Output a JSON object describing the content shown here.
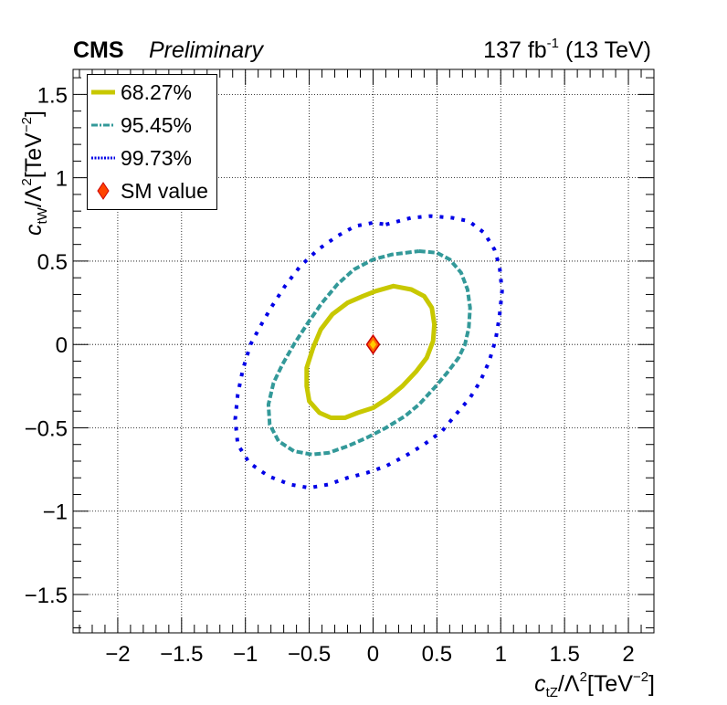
{
  "header": {
    "experiment": "CMS",
    "status": "Preliminary",
    "lumi_value": "137 fb",
    "lumi_exp": "-1",
    "energy": "(13 TeV)"
  },
  "chart_data": {
    "type": "scatter",
    "title": "",
    "xlabel": {
      "var": "c",
      "var_sub": "tZ",
      "mid": "/Λ",
      "mid_sup": "2",
      "unit": "[TeV",
      "unit_sup": "−2",
      "close": "]"
    },
    "ylabel": {
      "var": "c",
      "var_sub": "tW",
      "mid": "/Λ",
      "mid_sup": "2",
      "unit": "[TeV",
      "unit_sup": "−2",
      "close": "]"
    },
    "xlim": [
      -2.35,
      2.2
    ],
    "ylim": [
      -1.73,
      1.65
    ],
    "xticks": [
      -2,
      -1.5,
      -1,
      -0.5,
      0,
      0.5,
      1,
      1.5,
      2
    ],
    "xtick_labels": [
      "−2",
      "−1.5",
      "−1",
      "−0.5",
      "0",
      "0.5",
      "1",
      "1.5",
      "2"
    ],
    "yticks": [
      -1.5,
      -1,
      -0.5,
      0,
      0.5,
      1,
      1.5
    ],
    "ytick_labels": [
      "−1.5",
      "−1",
      "−0.5",
      "0",
      "0.5",
      "1",
      "1.5"
    ],
    "grid": true,
    "legend_position": "top-left",
    "colors": {
      "cl68": "#c8c800",
      "cl95": "#339999",
      "cl99": "#0000e6",
      "sm_fill": "#ff6600",
      "sm_edge": "#cc0000",
      "sm_inner": "#ffcc00"
    },
    "series": [
      {
        "name": "68.27%",
        "style": "solid-thick",
        "points": [
          [
            0.16,
            0.35
          ],
          [
            0.3,
            0.33
          ],
          [
            0.4,
            0.29
          ],
          [
            0.46,
            0.22
          ],
          [
            0.48,
            0.12
          ],
          [
            0.47,
            0.02
          ],
          [
            0.42,
            -0.08
          ],
          [
            0.34,
            -0.16
          ],
          [
            0.23,
            -0.25
          ],
          [
            0.12,
            -0.32
          ],
          [
            0.0,
            -0.38
          ],
          [
            -0.12,
            -0.41
          ],
          [
            -0.22,
            -0.44
          ],
          [
            -0.33,
            -0.44
          ],
          [
            -0.42,
            -0.41
          ],
          [
            -0.5,
            -0.34
          ],
          [
            -0.52,
            -0.25
          ],
          [
            -0.52,
            -0.14
          ],
          [
            -0.47,
            -0.02
          ],
          [
            -0.41,
            0.09
          ],
          [
            -0.32,
            0.18
          ],
          [
            -0.2,
            0.25
          ],
          [
            -0.08,
            0.29
          ],
          [
            0.02,
            0.32
          ],
          [
            0.16,
            0.35
          ]
        ]
      },
      {
        "name": "95.45%",
        "style": "dashed",
        "points": [
          [
            0.36,
            0.56
          ],
          [
            0.5,
            0.55
          ],
          [
            0.6,
            0.51
          ],
          [
            0.69,
            0.43
          ],
          [
            0.74,
            0.33
          ],
          [
            0.76,
            0.22
          ],
          [
            0.75,
            0.1
          ],
          [
            0.72,
            0.0
          ],
          [
            0.67,
            -0.08
          ],
          [
            0.58,
            -0.17
          ],
          [
            0.48,
            -0.26
          ],
          [
            0.36,
            -0.36
          ],
          [
            0.25,
            -0.43
          ],
          [
            0.1,
            -0.5
          ],
          [
            -0.05,
            -0.56
          ],
          [
            -0.2,
            -0.61
          ],
          [
            -0.35,
            -0.65
          ],
          [
            -0.48,
            -0.66
          ],
          [
            -0.62,
            -0.64
          ],
          [
            -0.74,
            -0.58
          ],
          [
            -0.81,
            -0.48
          ],
          [
            -0.82,
            -0.36
          ],
          [
            -0.78,
            -0.23
          ],
          [
            -0.71,
            -0.12
          ],
          [
            -0.62,
            0.0
          ],
          [
            -0.51,
            0.13
          ],
          [
            -0.4,
            0.25
          ],
          [
            -0.28,
            0.36
          ],
          [
            -0.15,
            0.45
          ],
          [
            0.0,
            0.51
          ],
          [
            0.15,
            0.54
          ],
          [
            0.36,
            0.56
          ]
        ]
      },
      {
        "name": "99.73%",
        "style": "dotted",
        "points": [
          [
            0.1,
            0.72
          ],
          [
            0.3,
            0.76
          ],
          [
            0.45,
            0.77
          ],
          [
            0.62,
            0.76
          ],
          [
            0.75,
            0.74
          ],
          [
            0.87,
            0.67
          ],
          [
            0.95,
            0.57
          ],
          [
            0.99,
            0.47
          ],
          [
            1.01,
            0.32
          ],
          [
            0.99,
            0.17
          ],
          [
            0.96,
            0.03
          ],
          [
            0.91,
            -0.1
          ],
          [
            0.84,
            -0.22
          ],
          [
            0.76,
            -0.32
          ],
          [
            0.66,
            -0.41
          ],
          [
            0.54,
            -0.52
          ],
          [
            0.4,
            -0.6
          ],
          [
            0.25,
            -0.67
          ],
          [
            0.1,
            -0.73
          ],
          [
            -0.05,
            -0.77
          ],
          [
            -0.2,
            -0.8
          ],
          [
            -0.35,
            -0.84
          ],
          [
            -0.5,
            -0.86
          ],
          [
            -0.65,
            -0.84
          ],
          [
            -0.82,
            -0.79
          ],
          [
            -0.97,
            -0.71
          ],
          [
            -1.06,
            -0.6
          ],
          [
            -1.08,
            -0.45
          ],
          [
            -1.06,
            -0.3
          ],
          [
            -1.02,
            -0.15
          ],
          [
            -0.96,
            0.0
          ],
          [
            -0.89,
            0.1
          ],
          [
            -0.8,
            0.22
          ],
          [
            -0.69,
            0.35
          ],
          [
            -0.57,
            0.47
          ],
          [
            -0.43,
            0.57
          ],
          [
            -0.28,
            0.65
          ],
          [
            -0.14,
            0.71
          ],
          [
            0.0,
            0.73
          ],
          [
            0.1,
            0.72
          ]
        ]
      },
      {
        "name": "SM value",
        "style": "diamond",
        "points": [
          [
            0,
            0
          ]
        ]
      }
    ]
  }
}
